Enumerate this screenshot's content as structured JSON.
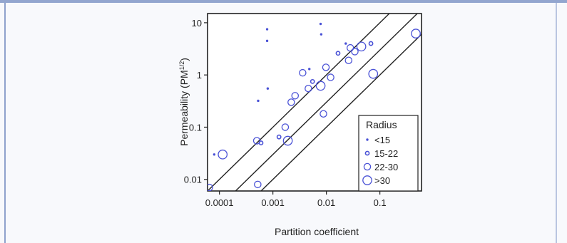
{
  "chart_data": {
    "type": "scatter",
    "xlabel": "Partition coefficient",
    "ylabel": "Permeability (PM",
    "ylabel_sup": "1/2",
    "ylabel_close": ")",
    "x_scale": "log",
    "y_scale": "log",
    "xlim": [
      6e-05,
      0.6
    ],
    "ylim": [
      0.006,
      15
    ],
    "x_ticks": [
      0.0001,
      0.001,
      0.01,
      0.1
    ],
    "x_tick_labels": [
      "0.0001",
      "0.001",
      "0.01",
      "0.1"
    ],
    "y_ticks": [
      0.01,
      0.1,
      1,
      10
    ],
    "y_tick_labels": [
      "0.01",
      "0.1",
      "1",
      "10"
    ],
    "grid": false,
    "legend_position": "bottom-right",
    "legend_title": "Radius",
    "reference_lines": [
      {
        "intercept": 100
      },
      {
        "intercept": 30
      },
      {
        "intercept": 10
      }
    ],
    "series": [
      {
        "name": "<15",
        "points": [
          {
            "x": 8e-05,
            "y": 0.03
          },
          {
            "x": 0.00053,
            "y": 0.32
          },
          {
            "x": 0.00078,
            "y": 7.5
          },
          {
            "x": 0.00078,
            "y": 4.5
          },
          {
            "x": 0.0008,
            "y": 0.55
          },
          {
            "x": 0.0048,
            "y": 1.3
          },
          {
            "x": 0.0078,
            "y": 9.5
          },
          {
            "x": 0.008,
            "y": 6.0
          },
          {
            "x": 0.023,
            "y": 4.0
          }
        ]
      },
      {
        "name": "15-22",
        "points": [
          {
            "x": 0.0006,
            "y": 0.05
          },
          {
            "x": 0.0013,
            "y": 0.065
          },
          {
            "x": 0.0055,
            "y": 0.75
          },
          {
            "x": 0.0165,
            "y": 2.6
          },
          {
            "x": 0.068,
            "y": 4.0
          }
        ]
      },
      {
        "name": "22-30",
        "points": [
          {
            "x": 6.5e-05,
            "y": 0.007
          },
          {
            "x": 0.0005,
            "y": 0.055
          },
          {
            "x": 0.00052,
            "y": 0.008
          },
          {
            "x": 0.0017,
            "y": 0.1
          },
          {
            "x": 0.0022,
            "y": 0.3
          },
          {
            "x": 0.0026,
            "y": 0.4
          },
          {
            "x": 0.0036,
            "y": 1.1
          },
          {
            "x": 0.0046,
            "y": 0.55
          },
          {
            "x": 0.0088,
            "y": 0.18
          },
          {
            "x": 0.0098,
            "y": 1.4
          },
          {
            "x": 0.012,
            "y": 0.9
          },
          {
            "x": 0.026,
            "y": 1.9
          },
          {
            "x": 0.028,
            "y": 3.3
          },
          {
            "x": 0.034,
            "y": 2.8
          }
        ]
      },
      {
        "name": ">30",
        "points": [
          {
            "x": 0.000115,
            "y": 0.03
          },
          {
            "x": 0.0019,
            "y": 0.055
          },
          {
            "x": 0.0078,
            "y": 0.62
          },
          {
            "x": 0.045,
            "y": 3.5
          },
          {
            "x": 0.075,
            "y": 1.05
          },
          {
            "x": 0.47,
            "y": 6.2
          }
        ]
      }
    ]
  },
  "colors": {
    "marker": "#4a52d6",
    "axis": "#222222",
    "frame_top": "#93a6cf"
  }
}
